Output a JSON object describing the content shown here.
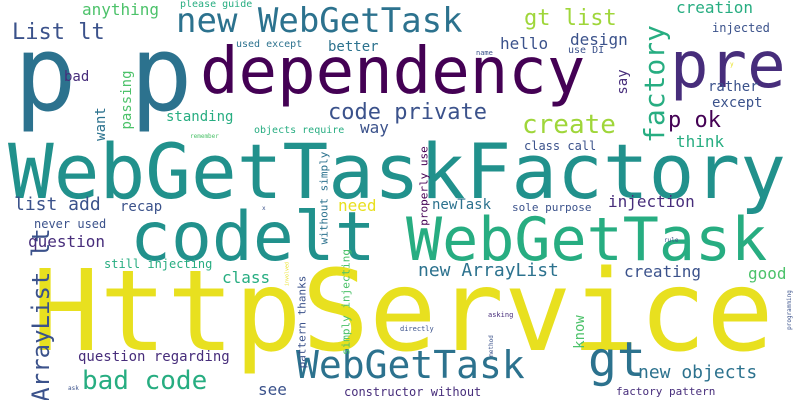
{
  "palette": {
    "background": "#ffffff",
    "yellow": "#e8e01f",
    "lime": "#9fd63a",
    "green": "#4cc26a",
    "teal_green": "#27ad81",
    "teal": "#21918c",
    "blue_teal": "#2c728e",
    "blue": "#3b528b",
    "indigo": "#472d7b",
    "purple": "#440154"
  },
  "words": {
    "httpservice": "HttpService",
    "webgettaskfactory": "WebGetTaskFactory",
    "codelt": "codelt",
    "webgettask_big": "WebGetTask",
    "dependency": "dependency",
    "p_big": "p",
    "p_second": "p",
    "pre": "pre",
    "new_webgettask": "new WebGetTask",
    "webgettask_bottom": "WebGetTask",
    "gt_big": "gt",
    "bad_code": "bad code",
    "create": "create",
    "factory": "factory",
    "arraylist_lt": "ArrayList lt",
    "list_lt": "List lt",
    "gt_list": "gt list",
    "code_private": "code private",
    "p_ok": "p ok",
    "new_arraylist": "new ArrayList",
    "new_objects": "new objects",
    "list_add": "list add",
    "recap": "recap",
    "need": "need",
    "injection": "injection",
    "newtask": "newTask",
    "creation": "creation",
    "design": "design",
    "hello": "hello",
    "anything": "anything",
    "injected": "injected",
    "better": "better",
    "say": "say",
    "rather": "rather",
    "except": "except",
    "think": "think",
    "standing": "standing",
    "way": "way",
    "passing": "passing",
    "want": "want",
    "bad": "bad",
    "question": "question",
    "never_used": "never used",
    "still_injecting": "still injecting",
    "class": "class",
    "creating": "creating",
    "good": "good",
    "question_regarding": "question regarding",
    "see": "see",
    "constructor_without": "constructor without",
    "factory_pattern": "factory pattern",
    "know": "know",
    "class_call": "class call",
    "sole_purpose": "sole purpose",
    "properly_use": "properly use",
    "without_simply": "without simply",
    "simply_injecting": "simply injecting",
    "pattern_thanks": "pattern thanks",
    "please_guide": "please guide",
    "used_except": "used except",
    "use_di": "use DI",
    "name": "name",
    "objects_require": "objects require",
    "remember": "remember",
    "directly": "directly",
    "asking": "asking",
    "method": "method",
    "rule": "rule",
    "programming": "programming",
    "ask": "ask",
    "x": "x",
    "y": "y",
    "involved": "involved"
  }
}
